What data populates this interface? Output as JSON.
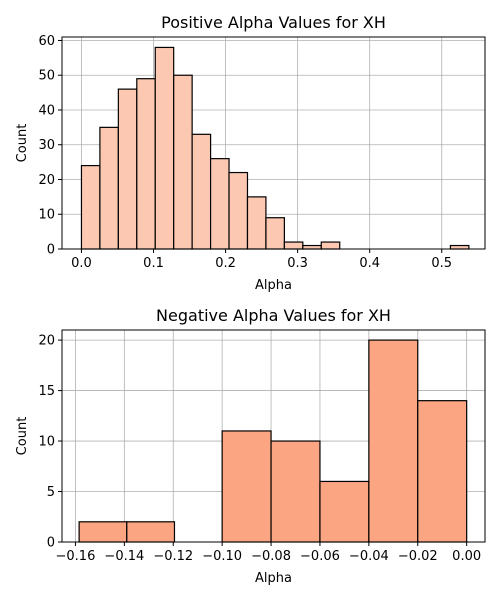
{
  "chart_data": [
    {
      "type": "bar",
      "title": "Positive Alpha Values for XH",
      "xlabel": "Alpha",
      "ylabel": "Count",
      "color": "#fcc8b2",
      "edge_color": "#000000",
      "grid": true,
      "xlim": [
        -0.027,
        0.56
      ],
      "ylim": [
        0,
        61
      ],
      "xticks": [
        "0.0",
        "0.1",
        "0.2",
        "0.3",
        "0.4",
        "0.5"
      ],
      "yticks": [
        "0",
        "10",
        "20",
        "30",
        "40",
        "50",
        "60"
      ],
      "bin_edges": [
        0.0,
        0.0256,
        0.0512,
        0.0768,
        0.1024,
        0.128,
        0.1536,
        0.1792,
        0.2048,
        0.2304,
        0.256,
        0.2816,
        0.3072,
        0.3328,
        0.3584,
        0.384,
        0.4096,
        0.4352,
        0.4608,
        0.4864,
        0.512,
        0.5376
      ],
      "values": [
        24,
        35,
        46,
        49,
        58,
        50,
        33,
        26,
        22,
        15,
        9,
        2,
        1,
        2,
        0,
        0,
        0,
        0,
        0,
        0,
        1
      ]
    },
    {
      "type": "bar",
      "title": "Negative Alpha Values for XH",
      "xlabel": "Alpha",
      "ylabel": "Count",
      "color": "#fca582",
      "edge_color": "#000000",
      "grid": true,
      "xlim": [
        -0.1655,
        0.0075
      ],
      "ylim": [
        0,
        21
      ],
      "xticks": [
        "−0.16",
        "−0.14",
        "−0.12",
        "−0.10",
        "−0.08",
        "−0.06",
        "−0.04",
        "−0.02",
        "0.00"
      ],
      "yticks": [
        "0",
        "5",
        "10",
        "15",
        "20"
      ],
      "bin_edges": [
        -0.1585,
        -0.139,
        -0.1195,
        -0.1,
        -0.08,
        -0.06,
        -0.04,
        -0.02,
        0.0
      ],
      "values": [
        2,
        2,
        0,
        11,
        10,
        6,
        20,
        14
      ]
    }
  ]
}
